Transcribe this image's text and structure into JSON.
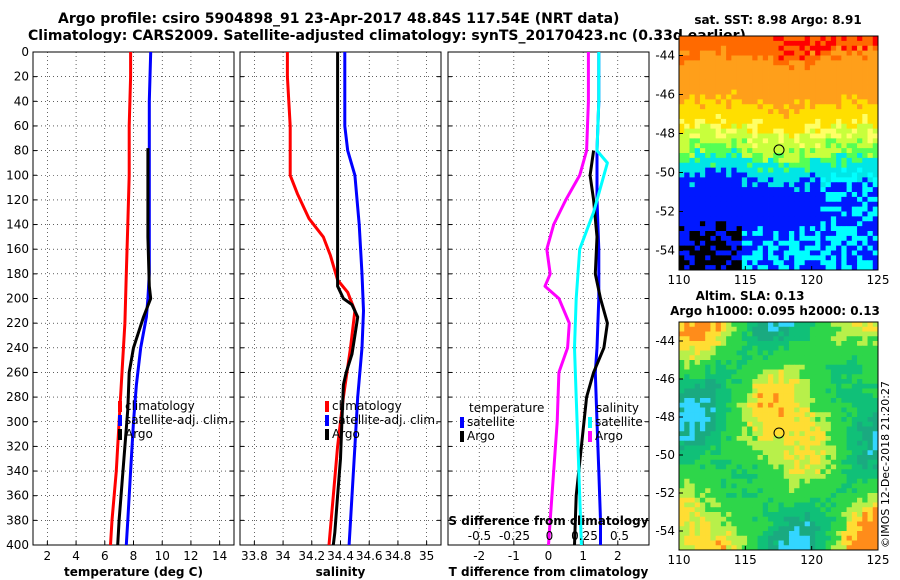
{
  "title": {
    "line1": "Argo profile: csiro 5904898_91 23-Apr-2017 48.84S 117.54E (NRT data)",
    "line2": "Climatology: CARS2009. Satellite-adjusted climatology: synTS_20170423.nc (0.33d earlier)"
  },
  "credit": "©IMOS 12-Dec-2018 21:20:27",
  "colors": {
    "climatology": "#ff0000",
    "satellite": "#0000ff",
    "argo": "#000000",
    "s_sat": "#00ffff",
    "s_argo": "#ff00ff"
  },
  "chart_data": [
    {
      "type": "line",
      "name": "temperature",
      "xlabel": "temperature (deg C)",
      "xlim": [
        1,
        15
      ],
      "xticks": [
        2,
        4,
        6,
        8,
        10,
        12,
        14
      ],
      "ylim": [
        400,
        0
      ],
      "yticks": [
        0,
        20,
        40,
        60,
        80,
        100,
        120,
        140,
        160,
        180,
        200,
        220,
        240,
        260,
        280,
        300,
        320,
        340,
        360,
        380,
        400
      ],
      "grid": true,
      "legend": {
        "entries": [
          "climatology",
          "satellite-adj. clim.",
          "Argo"
        ],
        "placement": "lower-middle"
      },
      "series": [
        {
          "name": "climatology",
          "color": "#ff0000",
          "points": [
            [
              7.8,
              0
            ],
            [
              7.8,
              20
            ],
            [
              7.7,
              60
            ],
            [
              7.7,
              100
            ],
            [
              7.6,
              140
            ],
            [
              7.5,
              180
            ],
            [
              7.4,
              220
            ],
            [
              7.2,
              260
            ],
            [
              7.0,
              300
            ],
            [
              6.8,
              340
            ],
            [
              6.5,
              380
            ],
            [
              6.4,
              400
            ]
          ]
        },
        {
          "name": "satellite-adj. clim.",
          "color": "#0000ff",
          "points": [
            [
              9.2,
              0
            ],
            [
              9.1,
              40
            ],
            [
              9.1,
              100
            ],
            [
              9.1,
              180
            ],
            [
              9.0,
              200
            ],
            [
              8.9,
              215
            ],
            [
              8.5,
              240
            ],
            [
              8.2,
              270
            ],
            [
              8.0,
              300
            ],
            [
              7.8,
              340
            ],
            [
              7.6,
              380
            ],
            [
              7.5,
              400
            ]
          ]
        },
        {
          "name": "Argo",
          "color": "#000000",
          "points": [
            [
              9.0,
              78
            ],
            [
              9.0,
              100
            ],
            [
              9.0,
              150
            ],
            [
              9.1,
              190
            ],
            [
              9.2,
              200
            ],
            [
              8.7,
              215
            ],
            [
              8.0,
              240
            ],
            [
              7.7,
              260
            ],
            [
              7.6,
              290
            ],
            [
              7.4,
              320
            ],
            [
              7.2,
              350
            ],
            [
              7.0,
              380
            ],
            [
              6.9,
              400
            ]
          ]
        }
      ]
    },
    {
      "type": "line",
      "name": "salinity",
      "xlabel": "salinity",
      "xlim": [
        33.7,
        35.1
      ],
      "xticks": [
        33.8,
        34,
        34.2,
        34.4,
        34.6,
        34.8,
        35
      ],
      "xtick_labels": [
        "33.8",
        "34",
        "34.2",
        "34.4",
        "34.6",
        "34.8",
        "35"
      ],
      "ylim": [
        400,
        0
      ],
      "grid": true,
      "legend": {
        "entries": [
          "climatology",
          "satellite-adj. clim.",
          "Argo"
        ],
        "placement": "lower-middle"
      },
      "series": [
        {
          "name": "climatology",
          "color": "#ff0000",
          "points": [
            [
              34.03,
              0
            ],
            [
              34.03,
              20
            ],
            [
              34.05,
              60
            ],
            [
              34.05,
              100
            ],
            [
              34.1,
              115
            ],
            [
              34.18,
              135
            ],
            [
              34.28,
              150
            ],
            [
              34.33,
              165
            ],
            [
              34.38,
              185
            ],
            [
              34.45,
              195
            ],
            [
              34.5,
              210
            ],
            [
              34.47,
              240
            ],
            [
              34.42,
              280
            ],
            [
              34.38,
              320
            ],
            [
              34.35,
              360
            ],
            [
              34.32,
              400
            ]
          ]
        },
        {
          "name": "satellite-adj. clim.",
          "color": "#0000ff",
          "points": [
            [
              34.43,
              0
            ],
            [
              34.43,
              20
            ],
            [
              34.43,
              60
            ],
            [
              34.45,
              80
            ],
            [
              34.5,
              100
            ],
            [
              34.53,
              140
            ],
            [
              34.55,
              180
            ],
            [
              34.56,
              210
            ],
            [
              34.55,
              240
            ],
            [
              34.52,
              280
            ],
            [
              34.5,
              320
            ],
            [
              34.48,
              360
            ],
            [
              34.46,
              400
            ]
          ]
        },
        {
          "name": "Argo",
          "color": "#000000",
          "points": [
            [
              34.38,
              0
            ],
            [
              34.38,
              100
            ],
            [
              34.38,
              160
            ],
            [
              34.38,
              190
            ],
            [
              34.42,
              200
            ],
            [
              34.48,
              205
            ],
            [
              34.52,
              215
            ],
            [
              34.5,
              230
            ],
            [
              34.48,
              245
            ],
            [
              34.44,
              260
            ],
            [
              34.42,
              270
            ],
            [
              34.41,
              300
            ],
            [
              34.4,
              330
            ],
            [
              34.38,
              360
            ],
            [
              34.36,
              390
            ],
            [
              34.35,
              400
            ]
          ]
        }
      ]
    },
    {
      "type": "line",
      "name": "difference from climatology",
      "xlabel": "T difference from climatology",
      "xlim": [
        -2.9,
        2.9
      ],
      "xticks": [
        -2,
        -1,
        0,
        1,
        2
      ],
      "x2label": "S difference from climatology",
      "x2ticks": [
        -0.5,
        -0.25,
        0,
        0.25,
        0.5
      ],
      "x2tick_labels": [
        "-0.5",
        "-0.25",
        "0",
        "0.25",
        "0.5"
      ],
      "ylim": [
        400,
        0
      ],
      "grid": true,
      "legend": {
        "temperature_title": "temperature",
        "salinity_title": "salinity",
        "entries": [
          "satellite",
          "Argo"
        ],
        "placement": "lower-middle"
      },
      "series": [
        {
          "name": "T satellite",
          "color": "#0000ff",
          "points": [
            [
              1.45,
              0
            ],
            [
              1.45,
              40
            ],
            [
              1.4,
              80
            ],
            [
              1.4,
              120
            ],
            [
              1.45,
              160
            ],
            [
              1.45,
              200
            ],
            [
              1.4,
              240
            ],
            [
              1.35,
              260
            ],
            [
              1.4,
              300
            ],
            [
              1.45,
              340
            ],
            [
              1.5,
              380
            ],
            [
              1.5,
              400
            ]
          ]
        },
        {
          "name": "T Argo",
          "color": "#000000",
          "points": [
            [
              1.3,
              80
            ],
            [
              1.2,
              100
            ],
            [
              1.3,
              120
            ],
            [
              1.4,
              150
            ],
            [
              1.35,
              180
            ],
            [
              1.5,
              200
            ],
            [
              1.7,
              220
            ],
            [
              1.6,
              240
            ],
            [
              1.3,
              260
            ],
            [
              1.1,
              280
            ],
            [
              0.95,
              320
            ],
            [
              0.8,
              360
            ],
            [
              0.75,
              400
            ]
          ]
        },
        {
          "name": "S satellite",
          "color": "#00ffff",
          "points": [
            [
              1.45,
              0
            ],
            [
              1.45,
              40
            ],
            [
              1.4,
              80
            ],
            [
              1.7,
              90
            ],
            [
              1.6,
              100
            ],
            [
              1.3,
              130
            ],
            [
              0.9,
              160
            ],
            [
              0.8,
              200
            ],
            [
              0.75,
              240
            ],
            [
              0.8,
              280
            ],
            [
              0.85,
              320
            ],
            [
              0.9,
              360
            ],
            [
              0.95,
              400
            ]
          ]
        },
        {
          "name": "S Argo",
          "color": "#ff00ff",
          "points": [
            [
              1.15,
              0
            ],
            [
              1.15,
              40
            ],
            [
              1.1,
              80
            ],
            [
              0.9,
              100
            ],
            [
              0.5,
              120
            ],
            [
              0.15,
              140
            ],
            [
              -0.05,
              160
            ],
            [
              0.05,
              180
            ],
            [
              -0.1,
              190
            ],
            [
              0.3,
              200
            ],
            [
              0.6,
              220
            ],
            [
              0.55,
              240
            ],
            [
              0.3,
              260
            ],
            [
              0.25,
              300
            ],
            [
              0.15,
              340
            ],
            [
              0.05,
              380
            ],
            [
              0.0,
              400
            ]
          ]
        }
      ]
    },
    {
      "type": "heatmap",
      "name": "SST map",
      "title": "sat. SST: 8.98 Argo: 8.91",
      "xticks": [
        110,
        115,
        120,
        125
      ],
      "xlim": [
        110,
        125
      ],
      "yticks": [
        -44,
        -46,
        -48,
        -50,
        -52,
        -54
      ],
      "ylim": [
        -55,
        -43
      ],
      "argo_position": [
        117.54,
        -48.84
      ]
    },
    {
      "type": "heatmap",
      "name": "SLA map",
      "title": "Altim. SLA: 0.13",
      "subtitle": "Argo h1000: 0.095 h2000: 0.13",
      "xticks": [
        110,
        115,
        120,
        125
      ],
      "xlim": [
        110,
        125
      ],
      "yticks": [
        -44,
        -46,
        -48,
        -50,
        -52,
        -54
      ],
      "ylim": [
        -55,
        -43
      ],
      "argo_position": [
        117.54,
        -48.84
      ]
    }
  ]
}
